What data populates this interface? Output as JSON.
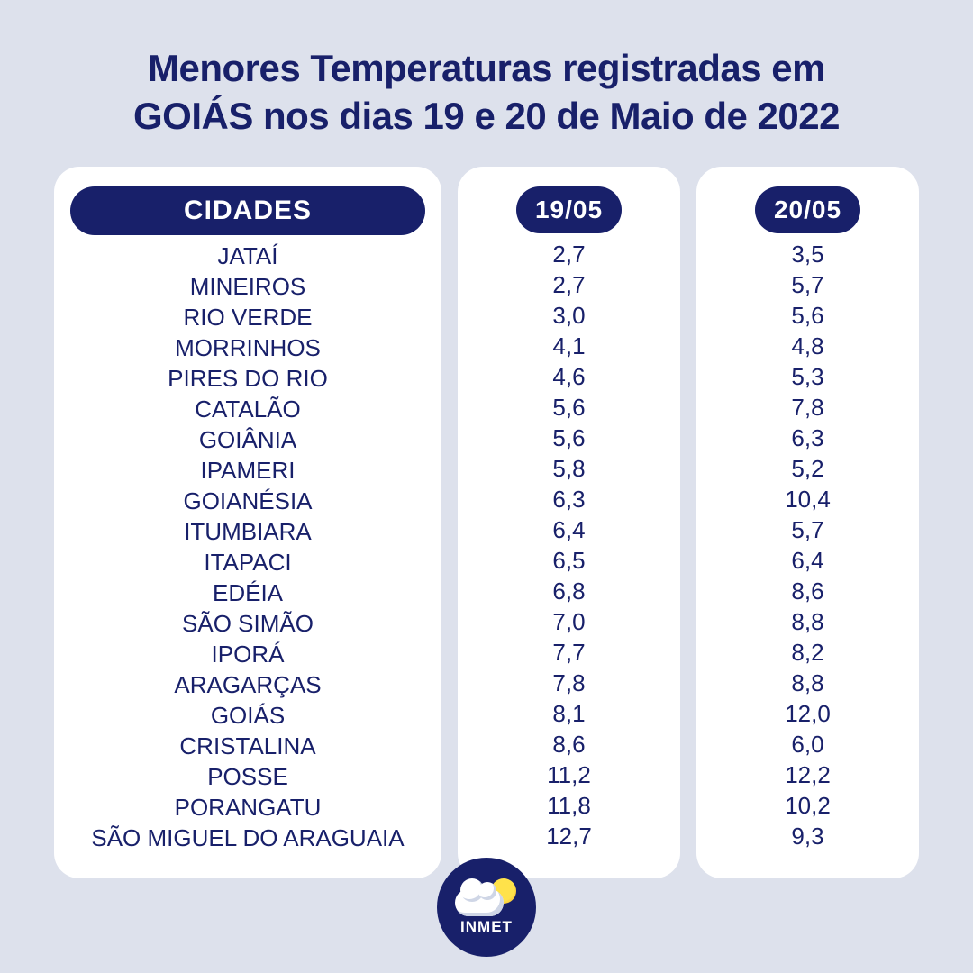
{
  "title_line1": "Menores Temperaturas registradas em",
  "title_line2": "GOIÁS nos dias 19 e 20 de Maio de 2022",
  "headers": {
    "cities": "CIDADES",
    "col1": "19/05",
    "col2": "20/05"
  },
  "logo_text": "INMET",
  "colors": {
    "bg": "#dde1ec",
    "panel": "#ffffff",
    "brand": "#18206a",
    "text": "#18206a"
  },
  "rows": [
    {
      "city": "JATAÍ",
      "d19": "2,7",
      "d20": "3,5"
    },
    {
      "city": "MINEIROS",
      "d19": "2,7",
      "d20": "5,7"
    },
    {
      "city": "RIO VERDE",
      "d19": "3,0",
      "d20": "5,6"
    },
    {
      "city": "MORRINHOS",
      "d19": "4,1",
      "d20": "4,8"
    },
    {
      "city": "PIRES DO RIO",
      "d19": "4,6",
      "d20": "5,3"
    },
    {
      "city": "CATALÃO",
      "d19": "5,6",
      "d20": "7,8"
    },
    {
      "city": "GOIÂNIA",
      "d19": "5,6",
      "d20": "6,3"
    },
    {
      "city": "IPAMERI",
      "d19": "5,8",
      "d20": "5,2"
    },
    {
      "city": "GOIANÉSIA",
      "d19": "6,3",
      "d20": "10,4"
    },
    {
      "city": "ITUMBIARA",
      "d19": "6,4",
      "d20": "5,7"
    },
    {
      "city": "ITAPACI",
      "d19": "6,5",
      "d20": "6,4"
    },
    {
      "city": "EDÉIA",
      "d19": "6,8",
      "d20": "8,6"
    },
    {
      "city": "SÃO SIMÃO",
      "d19": "7,0",
      "d20": "8,8"
    },
    {
      "city": "IPORÁ",
      "d19": "7,7",
      "d20": "8,2"
    },
    {
      "city": "ARAGARÇAS",
      "d19": "7,8",
      "d20": "8,8"
    },
    {
      "city": "GOIÁS",
      "d19": "8,1",
      "d20": "12,0"
    },
    {
      "city": "CRISTALINA",
      "d19": "8,6",
      "d20": "6,0"
    },
    {
      "city": "POSSE",
      "d19": "11,2",
      "d20": "12,2"
    },
    {
      "city": "PORANGATU",
      "d19": "11,8",
      "d20": "10,2"
    },
    {
      "city": "SÃO MIGUEL DO ARAGUAIA",
      "d19": "12,7",
      "d20": "9,3"
    }
  ]
}
